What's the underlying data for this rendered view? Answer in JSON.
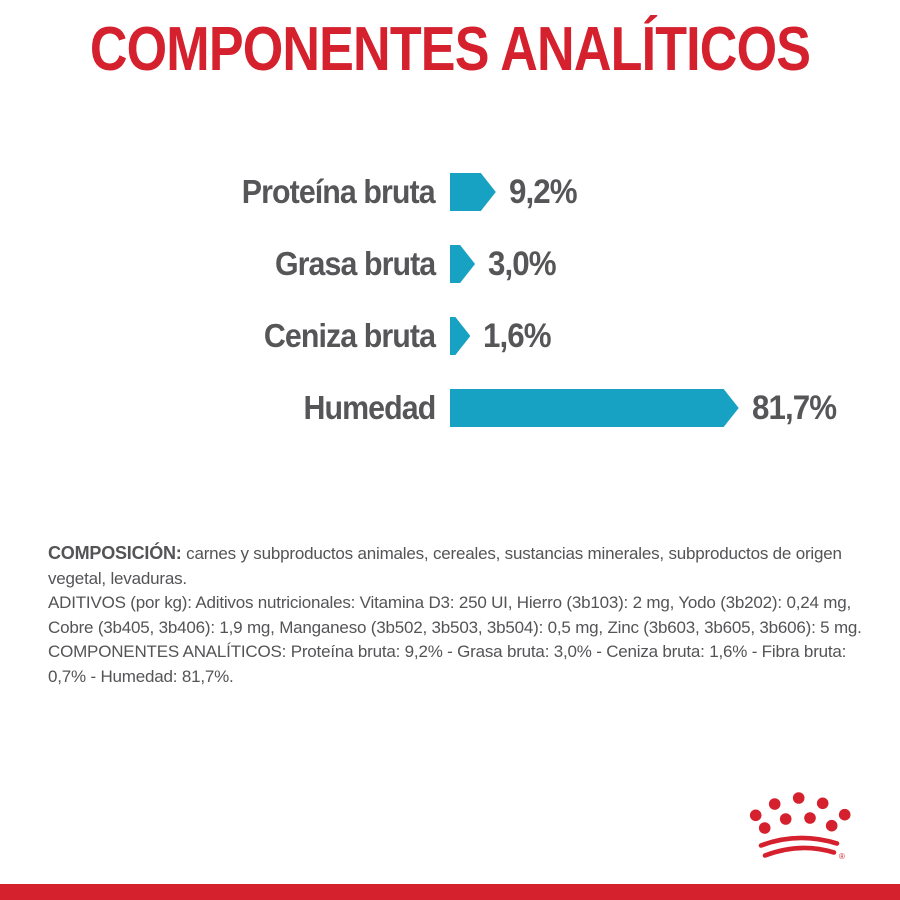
{
  "title": "COMPONENTES ANALÍTICOS",
  "chart_data": {
    "type": "bar",
    "orientation": "horizontal",
    "categories": [
      "Proteína bruta",
      "Grasa bruta",
      "Ceniza bruta",
      "Humedad"
    ],
    "values": [
      9.2,
      3.0,
      1.6,
      81.7
    ],
    "value_labels": [
      "9,2%",
      "3,0%",
      "1,6%",
      "81,7%"
    ],
    "unit": "%",
    "bar_color": "#17a1c3",
    "xlim": [
      0,
      100
    ],
    "grid": false,
    "legend": false
  },
  "composition": {
    "composicion_label": "COMPOSICIÓN:",
    "composicion_text": "carnes y subproductos animales, cereales, sustancias minerales, subproductos de origen vegetal, levaduras.",
    "aditivos_text": "ADITIVOS (por kg): Aditivos nutricionales: Vitamina D3: 250 UI, Hierro (3b103): 2 mg, Yodo (3b202): 0,24 mg, Cobre (3b405, 3b406): 1,9 mg, Manganeso (3b502, 3b503, 3b504): 0,5 mg, Zinc (3b603, 3b605, 3b606): 5 mg.",
    "componentes_text": "COMPONENTES ANALÍTICOS: Proteína bruta: 9,2% - Grasa bruta: 3,0% - Ceniza bruta: 1,6% - Fibra bruta: 0,7% - Humedad: 81,7%."
  },
  "branding": {
    "logo_name": "royal-canin-crown",
    "registered_mark": "®"
  },
  "colors": {
    "brand_red": "#d5202e",
    "bar_teal": "#17a1c3",
    "text_gray": "#565659"
  }
}
